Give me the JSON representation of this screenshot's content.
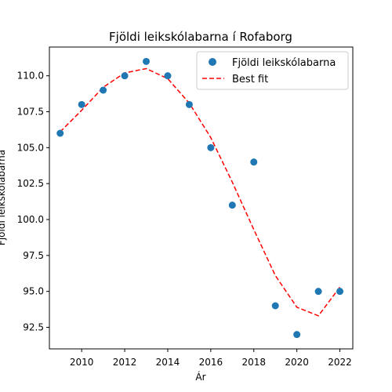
{
  "chart_data": {
    "type": "scatter",
    "title": "Fjöldi leikskólabarna í Rofaborg",
    "xlabel": "Ár",
    "ylabel": "Fjöldi leikskólabarna",
    "xlim": [
      2008.5,
      2022.6
    ],
    "ylim": [
      91.0,
      112.0
    ],
    "x_ticks": [
      2010,
      2012,
      2014,
      2016,
      2018,
      2020,
      2022
    ],
    "y_ticks": [
      92.5,
      95.0,
      97.5,
      100.0,
      102.5,
      105.0,
      107.5,
      110.0
    ],
    "grid": false,
    "legend_position": "top-right",
    "series": [
      {
        "name": "Fjöldi leikskólabarna",
        "kind": "scatter",
        "color": "#1f77b4",
        "x": [
          2009,
          2010,
          2011,
          2012,
          2013,
          2014,
          2015,
          2016,
          2017,
          2018,
          2019,
          2020,
          2021,
          2022
        ],
        "y": [
          106,
          108,
          109,
          110,
          111,
          110,
          108,
          105,
          101,
          104,
          94,
          92,
          95,
          95
        ]
      },
      {
        "name": "Best fit",
        "kind": "line",
        "style": "dashed",
        "color": "#ff0000",
        "x": [
          2009,
          2010,
          2011,
          2012,
          2013,
          2014,
          2015,
          2016,
          2017,
          2018,
          2019,
          2020,
          2021,
          2022
        ],
        "y": [
          106.1,
          107.6,
          109.2,
          110.2,
          110.5,
          109.8,
          108.1,
          105.7,
          102.6,
          99.3,
          96.1,
          93.9,
          93.3,
          95.3
        ]
      }
    ]
  }
}
